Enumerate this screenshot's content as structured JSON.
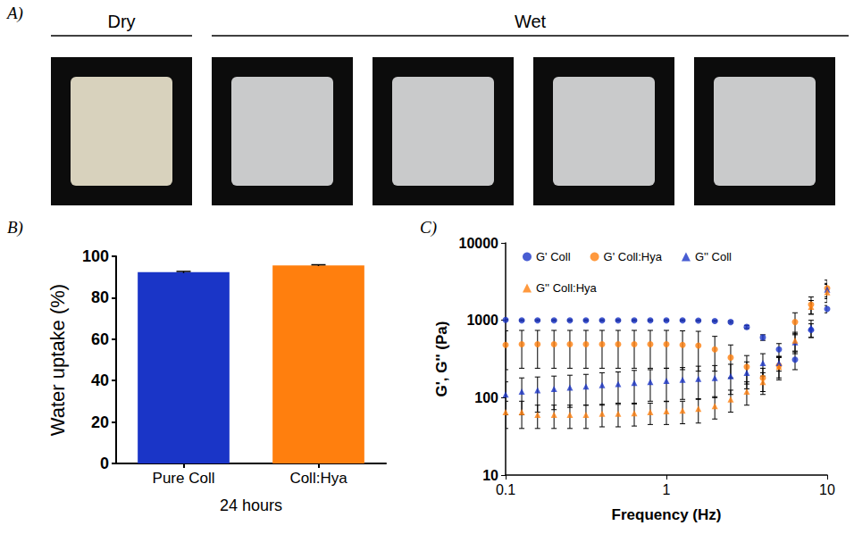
{
  "panel_a": {
    "letter": "A)",
    "groups": [
      {
        "label": "Dry",
        "photos": 1
      },
      {
        "label": "Wet",
        "photos": 4
      }
    ]
  },
  "chart_data": [
    {
      "panel": "B)",
      "type": "bar",
      "categories": [
        "Pure Coll",
        "Coll:Hya"
      ],
      "values": [
        92.3,
        95.6
      ],
      "errors": [
        0.4,
        0.3
      ],
      "colors": [
        "#1a35c7",
        "#ff7f0e"
      ],
      "x_label": "24 hours",
      "y_label": "Water uptake (%)",
      "ylim": [
        0,
        100
      ],
      "yticks": [
        0,
        20,
        40,
        60,
        80,
        100
      ],
      "grid": false
    },
    {
      "panel": "C)",
      "type": "scatter",
      "log": true,
      "x": [
        0.1,
        0.126,
        0.158,
        0.2,
        0.251,
        0.316,
        0.398,
        0.501,
        0.631,
        0.794,
        1,
        1.26,
        1.58,
        2,
        2.51,
        3.16,
        3.98,
        5.01,
        6.31,
        7.94,
        10
      ],
      "series": [
        {
          "name": "G' Coll",
          "color": "#1a35c7",
          "marker": "circle",
          "values": [
            1010,
            1000,
            1000,
            1000,
            1000,
            1000,
            1000,
            1000,
            1000,
            1000,
            1000,
            1000,
            990,
            980,
            950,
            820,
            600,
            420,
            310,
            750,
            1400
          ],
          "errors": [
            20,
            20,
            20,
            20,
            20,
            20,
            20,
            20,
            20,
            20,
            20,
            20,
            20,
            20,
            30,
            40,
            50,
            80,
            80,
            150,
            150
          ]
        },
        {
          "name": "G' Coll:Hya",
          "color": "#ff7f0e",
          "marker": "circle",
          "values": [
            480,
            490,
            490,
            490,
            490,
            490,
            490,
            490,
            490,
            490,
            490,
            480,
            470,
            420,
            330,
            250,
            180,
            260,
            950,
            1600,
            2600
          ],
          "errors": [
            250,
            250,
            250,
            250,
            250,
            250,
            250,
            250,
            250,
            250,
            250,
            250,
            250,
            200,
            150,
            100,
            60,
            80,
            300,
            400,
            700
          ]
        },
        {
          "name": "G'' Coll",
          "color": "#1a35c7",
          "marker": "triangle",
          "values": [
            110,
            120,
            125,
            130,
            135,
            140,
            145,
            150,
            155,
            160,
            165,
            170,
            175,
            180,
            190,
            210,
            280,
            280,
            520,
            800,
            2500
          ],
          "errors": [
            50,
            60,
            60,
            60,
            60,
            60,
            65,
            65,
            70,
            70,
            75,
            75,
            80,
            80,
            80,
            80,
            90,
            60,
            150,
            200,
            500
          ]
        },
        {
          "name": "G'' Coll:Hya",
          "color": "#ff7f0e",
          "marker": "triangle",
          "values": [
            65,
            65,
            60,
            60,
            60,
            60,
            62,
            62,
            63,
            65,
            67,
            68,
            72,
            78,
            95,
            120,
            160,
            250,
            550,
            1500,
            2300
          ],
          "errors": [
            25,
            25,
            20,
            20,
            20,
            20,
            20,
            20,
            20,
            20,
            22,
            22,
            25,
            25,
            30,
            40,
            50,
            80,
            150,
            300,
            600
          ]
        }
      ],
      "x_label": "Frequency (Hz)",
      "y_label": "G', G'' (Pa)",
      "xlim": [
        0.1,
        10
      ],
      "ylim": [
        10,
        10000
      ],
      "xticks": [
        0.1,
        1,
        10
      ],
      "yticks": [
        10,
        100,
        1000,
        10000
      ],
      "legend": "upper left",
      "grid": false
    }
  ]
}
